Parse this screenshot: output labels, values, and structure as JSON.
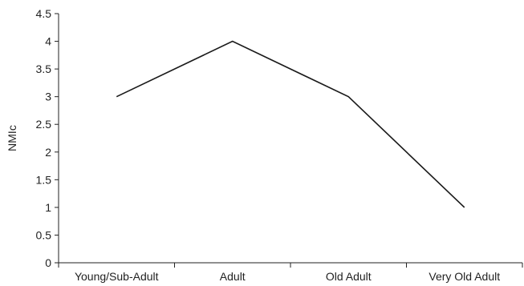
{
  "chart_data": {
    "type": "line",
    "categories": [
      "Young/Sub-Adult",
      "Adult",
      "Old Adult",
      "Very Old Adult"
    ],
    "values": [
      3,
      4,
      3,
      1
    ],
    "title": "",
    "xlabel": "",
    "ylabel": "NMIc",
    "ylim": [
      0,
      4.5
    ],
    "yticks": [
      "0",
      "0.5",
      "1",
      "1.5",
      "2",
      "2.5",
      "3",
      "3.5",
      "4",
      "4.5"
    ],
    "grid": false,
    "line_color": "#1a1a1a"
  }
}
